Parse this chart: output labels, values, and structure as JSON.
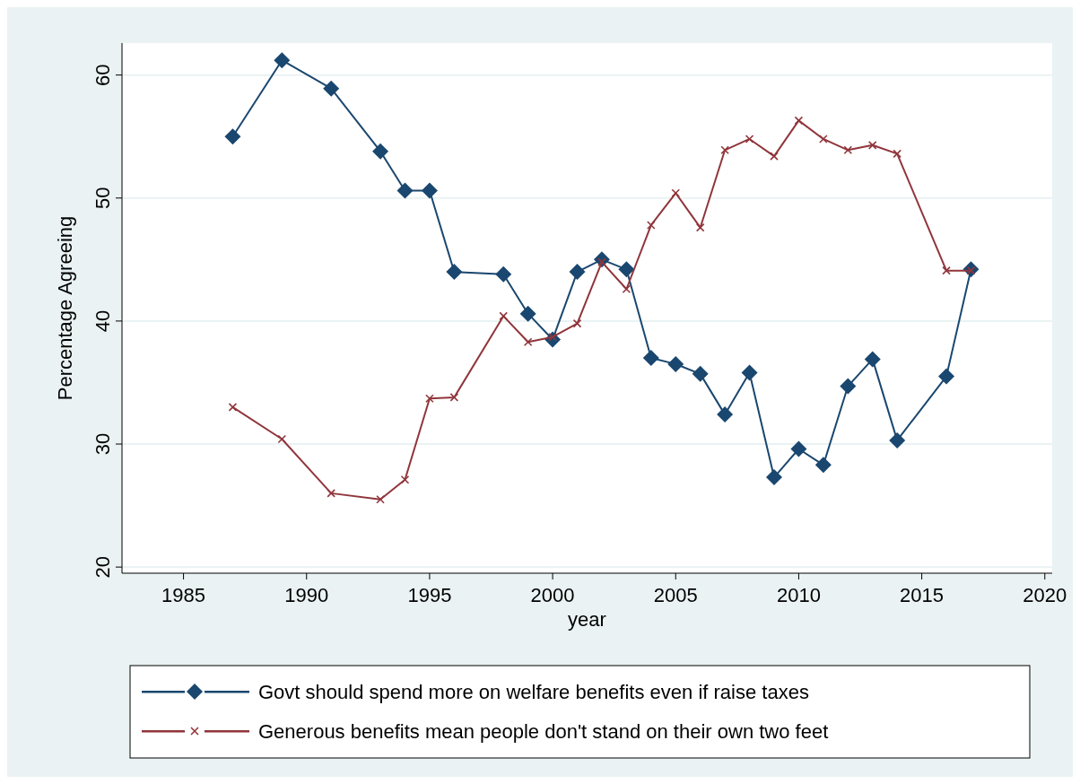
{
  "chart_data": {
    "type": "line",
    "xlabel": "year",
    "ylabel": "Percentage Agreeing",
    "xlim": [
      1982.5,
      2020.3
    ],
    "xticks": [
      1985,
      1990,
      1995,
      2000,
      2005,
      2010,
      2015,
      2020
    ],
    "ylim": [
      19.5,
      62.6
    ],
    "yticks": [
      20,
      30,
      40,
      50,
      60
    ],
    "grid": "y",
    "legend": "bottom",
    "line_style": "solid",
    "x": [
      1987,
      1989,
      1991,
      1993,
      1994,
      1995,
      1996,
      1998,
      1999,
      2000,
      2001,
      2002,
      2003,
      2004,
      2005,
      2006,
      2007,
      2008,
      2009,
      2010,
      2011,
      2012,
      2013,
      2014,
      2016,
      2017
    ],
    "series": [
      {
        "name": "Govt should spend more on welfare benefits even if raise taxes",
        "color": "#1a476f",
        "marker": "diamond",
        "values": [
          55,
          61.2,
          58.9,
          53.8,
          50.6,
          50.6,
          44,
          43.8,
          40.6,
          38.5,
          44,
          45,
          44.2,
          37,
          36.5,
          35.7,
          32.4,
          35.8,
          27.3,
          29.6,
          28.3,
          34.7,
          36.9,
          30.3,
          35.5,
          44.2
        ]
      },
      {
        "name": "Generous benefits mean people don't stand on their own two feet",
        "color": "#90353b",
        "marker": "cross",
        "values": [
          33,
          30.4,
          26,
          25.5,
          27.1,
          33.7,
          33.8,
          40.4,
          38.3,
          38.7,
          39.8,
          44.8,
          42.6,
          47.8,
          50.4,
          47.6,
          53.9,
          54.8,
          53.4,
          56.3,
          54.8,
          53.9,
          54.3,
          53.6,
          44.1,
          44.1
        ]
      }
    ]
  }
}
